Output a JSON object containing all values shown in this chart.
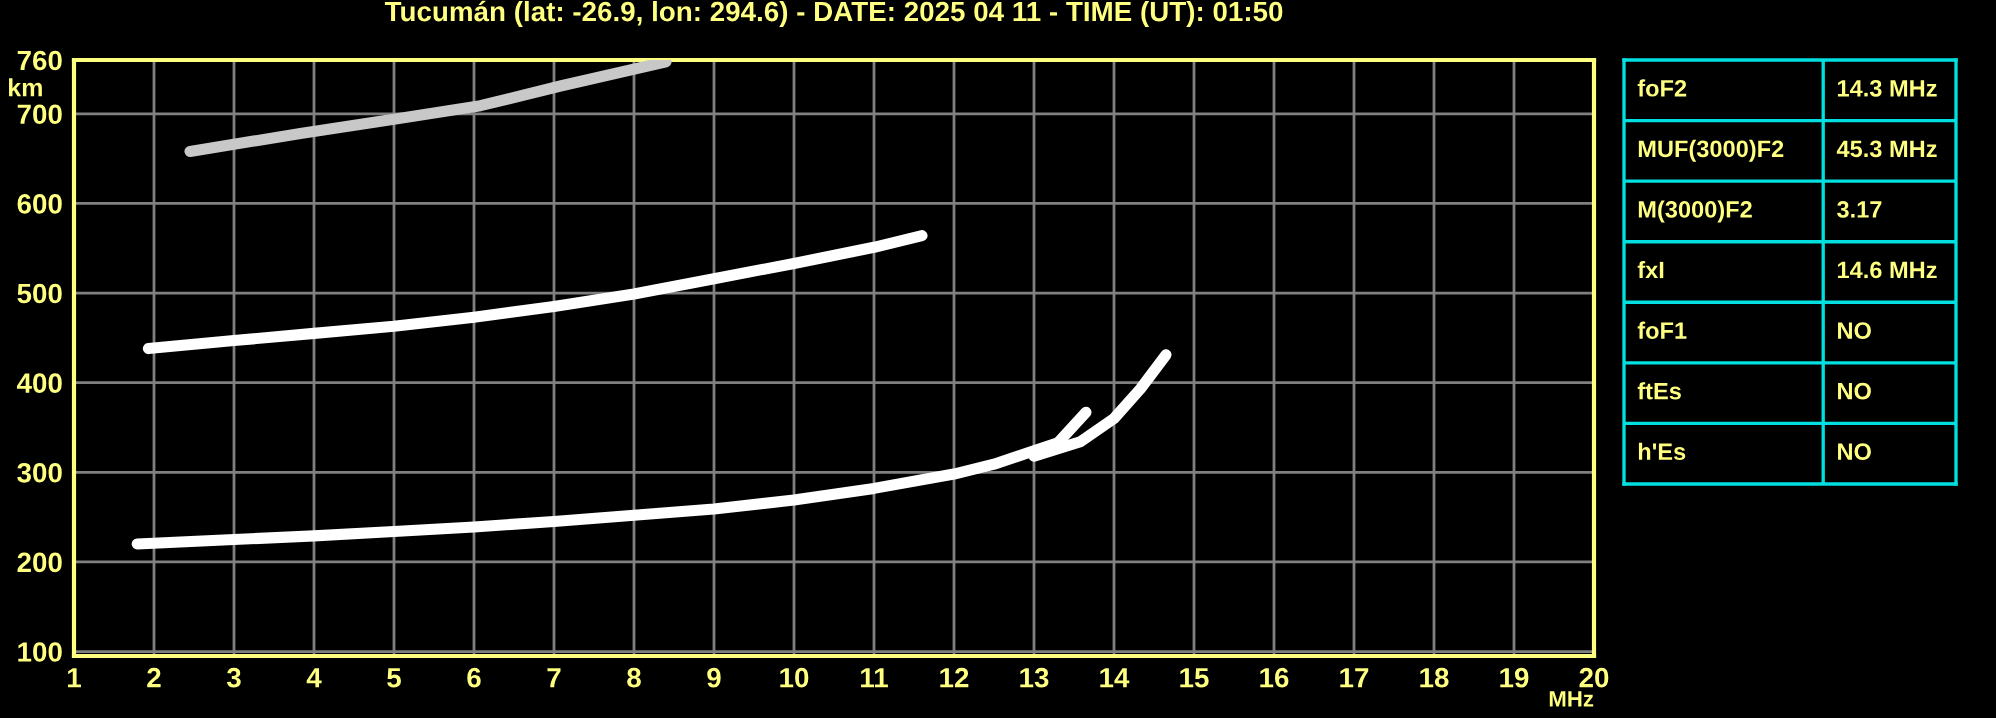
{
  "chart_data": [
    {
      "type": "line",
      "title": "Tucumán (lat: -26.9, lon: 294.6) - DATE: 2025 04 11 - TIME (UT): 01:50",
      "xlabel": "MHz",
      "ylabel": "km",
      "series": [
        {
          "color": "#ffffff",
          "x": [
            1.79,
            3,
            4,
            5,
            6,
            7,
            8,
            9,
            10,
            11,
            12,
            12.5,
            13,
            13.3,
            13.65
          ],
          "values": [
            220,
            225,
            229,
            234,
            239,
            245,
            252,
            259,
            269,
            282,
            298,
            309,
            324,
            333,
            367
          ]
        },
        {
          "color": "#ffffff",
          "x": [
            13.0,
            13.58,
            14.0,
            14.33,
            14.65
          ],
          "values": [
            318,
            334,
            360,
            393,
            431
          ]
        },
        {
          "color": "#ffffff",
          "x": [
            1.93,
            3,
            4,
            5,
            6,
            7,
            8,
            9,
            10,
            11,
            11.6
          ],
          "values": [
            438,
            447,
            455,
            463,
            473,
            485,
            499,
            516,
            533,
            551,
            564
          ]
        },
        {
          "color": "#c8c8c8",
          "x": [
            2.45,
            3.83,
            5.08,
            6.08,
            7.08,
            8.4
          ],
          "values": [
            658,
            678,
            695,
            709,
            731,
            758
          ]
        }
      ],
      "xlim": [
        1,
        20
      ],
      "ylim": [
        95,
        760
      ],
      "xticks": [
        1,
        2,
        3,
        4,
        5,
        6,
        7,
        8,
        9,
        10,
        11,
        12,
        13,
        14,
        15,
        16,
        17,
        18,
        19,
        20
      ],
      "yticks": [
        100,
        200,
        300,
        400,
        500,
        600,
        700,
        760
      ],
      "grid": true,
      "line_style": "solid",
      "marker": "none"
    },
    {
      "type": "other",
      "annotations": [
        "foF2",
        "14.3 MHz",
        "MUF(3000)F2",
        "45.3 MHz",
        "M(3000)F2",
        "3.17",
        "fxI",
        "14.6 MHz",
        "foF1",
        "NO",
        "ftEs",
        "NO",
        "h'Es",
        "NO"
      ]
    }
  ]
}
